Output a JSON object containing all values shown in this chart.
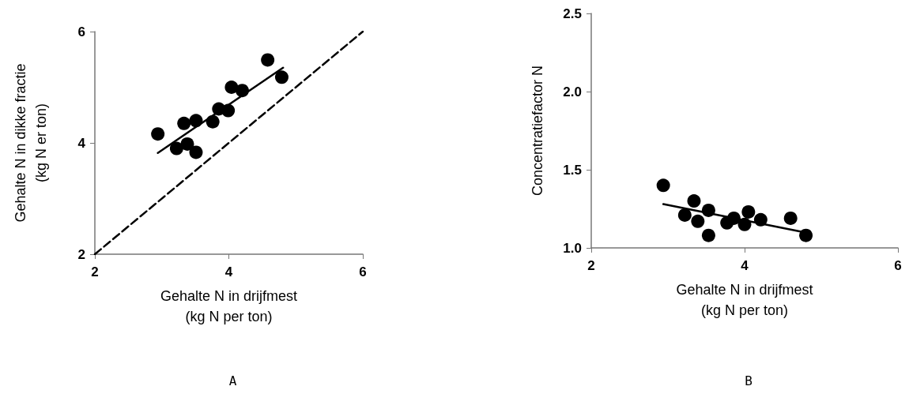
{
  "chart_data": [
    {
      "type": "scatter",
      "title": "A",
      "xlabel": "Gehalte N in drijfmest\n(kg N per ton)",
      "ylabel": "Gehalte N in dikke fractie\n(kg N er ton)",
      "xlim": [
        2,
        6
      ],
      "ylim": [
        2,
        6
      ],
      "xticks": [
        2,
        4,
        6
      ],
      "yticks": [
        2,
        4,
        6
      ],
      "grid": false,
      "marker": "circle",
      "series": [
        {
          "type": "scatter",
          "color": "#000000",
          "x": [
            2.94,
            3.22,
            3.38,
            3.51,
            3.33,
            3.51,
            3.76,
            3.85,
            3.99,
            4.04,
            4.2,
            4.58,
            4.79
          ],
          "values": [
            4.16,
            3.9,
            3.98,
            3.83,
            4.35,
            4.4,
            4.38,
            4.61,
            4.58,
            5.0,
            4.94,
            5.49,
            5.18
          ]
        },
        {
          "type": "line",
          "color": "#000000",
          "line_style": "solid",
          "marker": "none",
          "x": [
            2.94,
            4.81
          ],
          "values": [
            3.82,
            5.35
          ]
        },
        {
          "type": "line",
          "color": "#000000",
          "line_style": "dashed",
          "marker": "none",
          "x": [
            2,
            6
          ],
          "values": [
            2,
            6
          ]
        }
      ]
    },
    {
      "type": "scatter",
      "title": "B",
      "xlabel": "Gehalte N in drijfmest\n(kg N per ton)",
      "ylabel": "Concentratiefactor N",
      "xlim": [
        2,
        6
      ],
      "ylim": [
        1,
        2.5
      ],
      "xticks": [
        2,
        4,
        6
      ],
      "yticks": [
        {
          "value": 1,
          "label": "1.0"
        },
        1.5,
        {
          "value": 2,
          "label": "2.0"
        },
        2.5
      ],
      "grid": false,
      "marker": "circle",
      "series": [
        {
          "type": "scatter",
          "color": "#000000",
          "x": [
            2.94,
            3.34,
            3.22,
            3.39,
            3.53,
            3.53,
            3.77,
            3.86,
            4.0,
            4.05,
            4.21,
            4.6,
            4.8
          ],
          "values": [
            1.4,
            1.3,
            1.21,
            1.17,
            1.24,
            1.08,
            1.16,
            1.19,
            1.15,
            1.23,
            1.18,
            1.19,
            1.08
          ]
        },
        {
          "type": "line",
          "color": "#000000",
          "line_style": "solid",
          "marker": "none",
          "x": [
            2.94,
            4.78
          ],
          "values": [
            1.28,
            1.1
          ]
        }
      ]
    }
  ]
}
